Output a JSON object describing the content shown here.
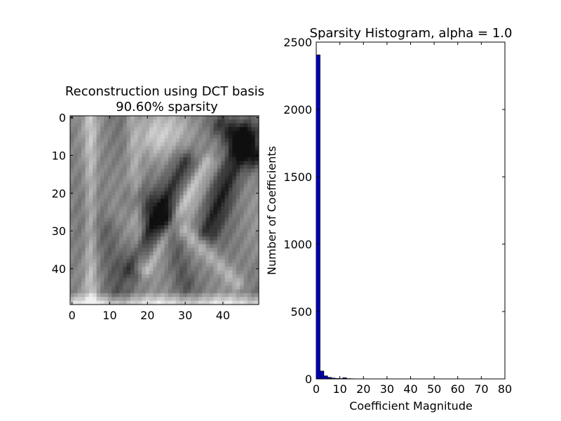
{
  "chart_data": [
    {
      "type": "heatmap",
      "title_line1": "Reconstruction using DCT basis",
      "title_line2": "90.60% sparsity",
      "colormap": "gray",
      "size": [
        50,
        50
      ],
      "xticks": [
        0,
        10,
        20,
        30,
        40
      ],
      "yticks": [
        0,
        10,
        20,
        30,
        40
      ],
      "xlim": [
        -0.5,
        49.5
      ],
      "ylim": [
        -0.5,
        49.5
      ]
    },
    {
      "type": "bar",
      "title": "Sparsity Histogram, alpha = 1.0",
      "xlabel": "Coefficient Magnitude",
      "ylabel": "Number of Coefficients",
      "xlim": [
        0,
        80
      ],
      "ylim": [
        0,
        2500
      ],
      "xticks": [
        0,
        10,
        20,
        30,
        40,
        50,
        60,
        70,
        80
      ],
      "yticks": [
        0,
        500,
        1000,
        1500,
        2000,
        2500
      ],
      "bar_color": "#0000bf",
      "bins": [
        {
          "x0": 0.0,
          "x1": 1.6,
          "count": 2405
        },
        {
          "x0": 1.6,
          "x1": 3.2,
          "count": 58
        },
        {
          "x0": 3.2,
          "x1": 4.8,
          "count": 22
        },
        {
          "x0": 4.8,
          "x1": 6.4,
          "count": 11
        },
        {
          "x0": 6.4,
          "x1": 8.0,
          "count": 6
        },
        {
          "x0": 8.0,
          "x1": 9.6,
          "count": 3
        },
        {
          "x0": 9.6,
          "x1": 11.2,
          "count": 2
        },
        {
          "x0": 11.2,
          "x1": 12.8,
          "count": 8
        },
        {
          "x0": 12.8,
          "x1": 14.4,
          "count": 2
        },
        {
          "x0": 14.4,
          "x1": 16.0,
          "count": 1
        }
      ]
    }
  ]
}
